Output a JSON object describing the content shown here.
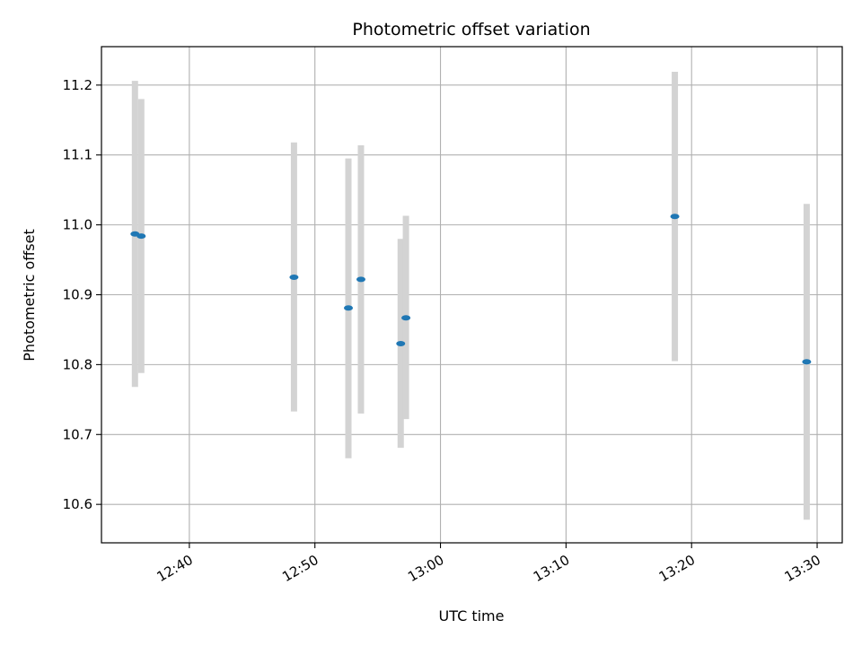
{
  "chart_data": {
    "type": "scatter",
    "title": "Photometric offset variation",
    "xlabel": "UTC time",
    "ylabel": "Photometric offset",
    "x_axis": {
      "kind": "time",
      "range": [
        "12:33",
        "13:32"
      ],
      "ticks": [
        "12:40",
        "12:50",
        "13:00",
        "13:10",
        "13:20",
        "13:30"
      ]
    },
    "y_axis": {
      "range": [
        10.545,
        11.255
      ],
      "ticks": [
        10.6,
        10.7,
        10.8,
        10.9,
        11.0,
        11.1,
        11.2
      ]
    },
    "grid": true,
    "colors": {
      "marker": "#1f77b4",
      "errorbar": "#d3d3d3",
      "grid": "#b0b0b0"
    },
    "series": [
      {
        "points": [
          {
            "t": "12:35:40",
            "y": 10.987,
            "ylow": 10.768,
            "yhigh": 11.206
          },
          {
            "t": "12:36:10",
            "y": 10.984,
            "ylow": 10.788,
            "yhigh": 11.18
          },
          {
            "t": "12:48:20",
            "y": 10.925,
            "ylow": 10.733,
            "yhigh": 11.118
          },
          {
            "t": "12:52:40",
            "y": 10.881,
            "ylow": 10.666,
            "yhigh": 11.095
          },
          {
            "t": "12:53:40",
            "y": 10.922,
            "ylow": 10.73,
            "yhigh": 11.114
          },
          {
            "t": "12:56:50",
            "y": 10.83,
            "ylow": 10.681,
            "yhigh": 10.98
          },
          {
            "t": "12:57:15",
            "y": 10.867,
            "ylow": 10.722,
            "yhigh": 11.013
          },
          {
            "t": "13:18:40",
            "y": 11.012,
            "ylow": 10.805,
            "yhigh": 11.219
          },
          {
            "t": "13:29:10",
            "y": 10.804,
            "ylow": 10.578,
            "yhigh": 11.03
          }
        ]
      }
    ]
  }
}
